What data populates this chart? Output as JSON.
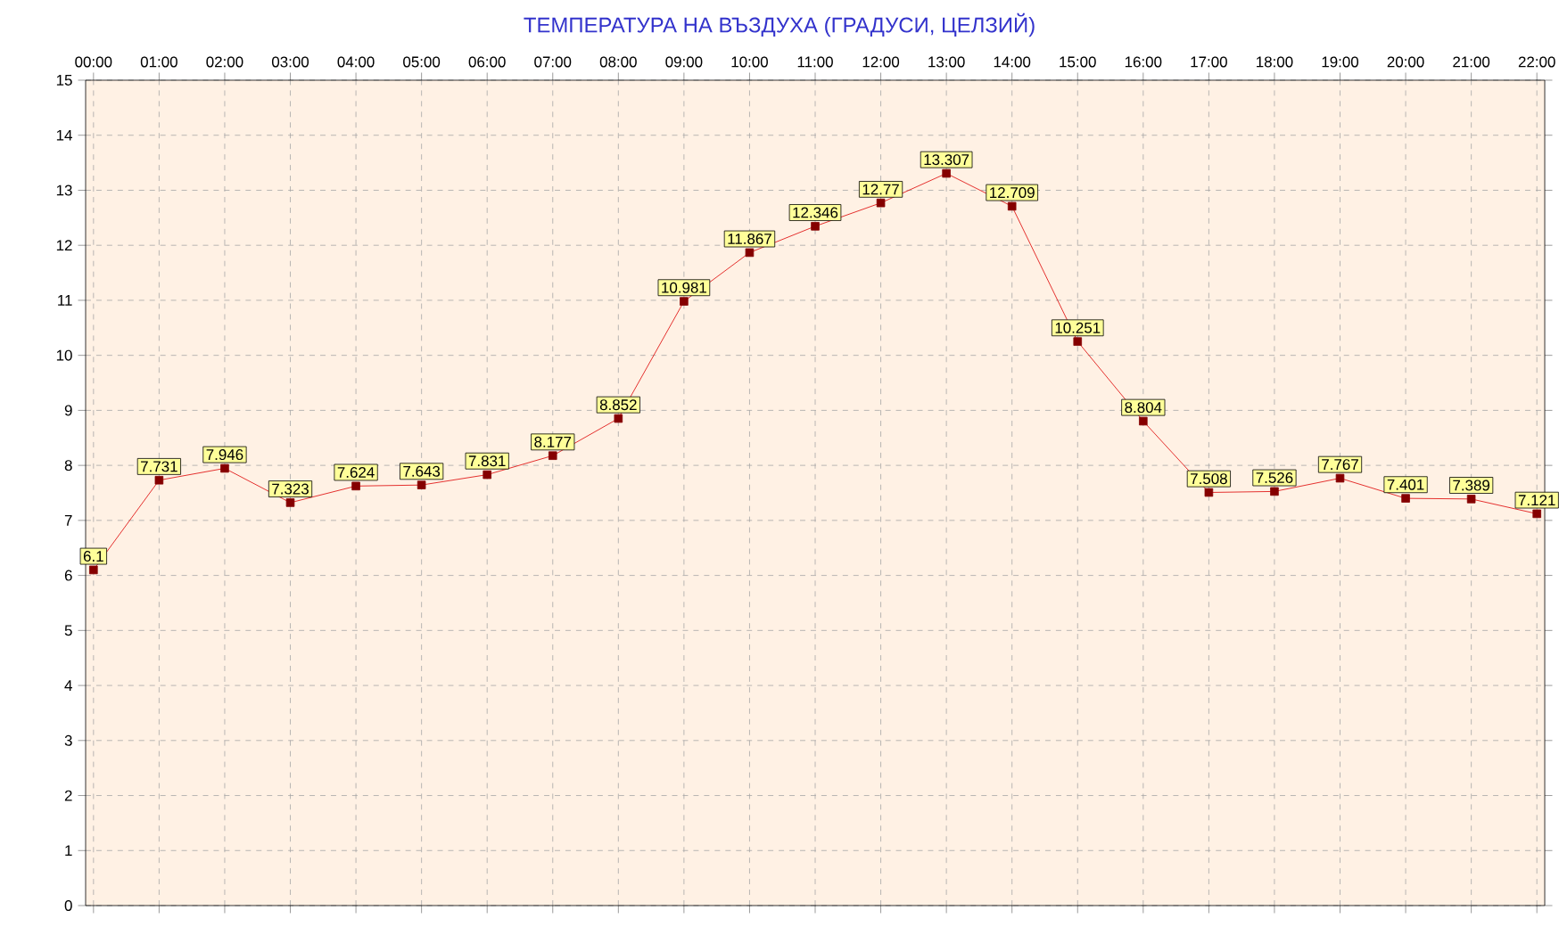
{
  "chart_data": {
    "type": "line",
    "title": "ТЕМПЕРАТУРА НА ВЪЗДУХА  (ГРАДУСИ, ЦЕЛЗИЙ)",
    "categories": [
      "00:00",
      "01:00",
      "02:00",
      "03:00",
      "04:00",
      "05:00",
      "06:00",
      "07:00",
      "08:00",
      "09:00",
      "10:00",
      "11:00",
      "12:00",
      "13:00",
      "14:00",
      "15:00",
      "16:00",
      "17:00",
      "18:00",
      "19:00",
      "20:00",
      "21:00",
      "22:00"
    ],
    "values": [
      6.1,
      7.731,
      7.946,
      7.323,
      7.624,
      7.643,
      7.831,
      8.177,
      8.852,
      10.981,
      11.867,
      12.346,
      12.77,
      13.307,
      12.709,
      10.251,
      8.804,
      7.508,
      7.526,
      7.767,
      7.401,
      7.389,
      7.121
    ],
    "color": "#dd0000",
    "ylim": [
      0,
      15
    ],
    "yticks": [
      0,
      1,
      2,
      3,
      4,
      5,
      6,
      7,
      8,
      9,
      10,
      11,
      12,
      13,
      14,
      15
    ],
    "grid": true,
    "marker": "square",
    "line_style": "solid",
    "data_labels": true
  }
}
